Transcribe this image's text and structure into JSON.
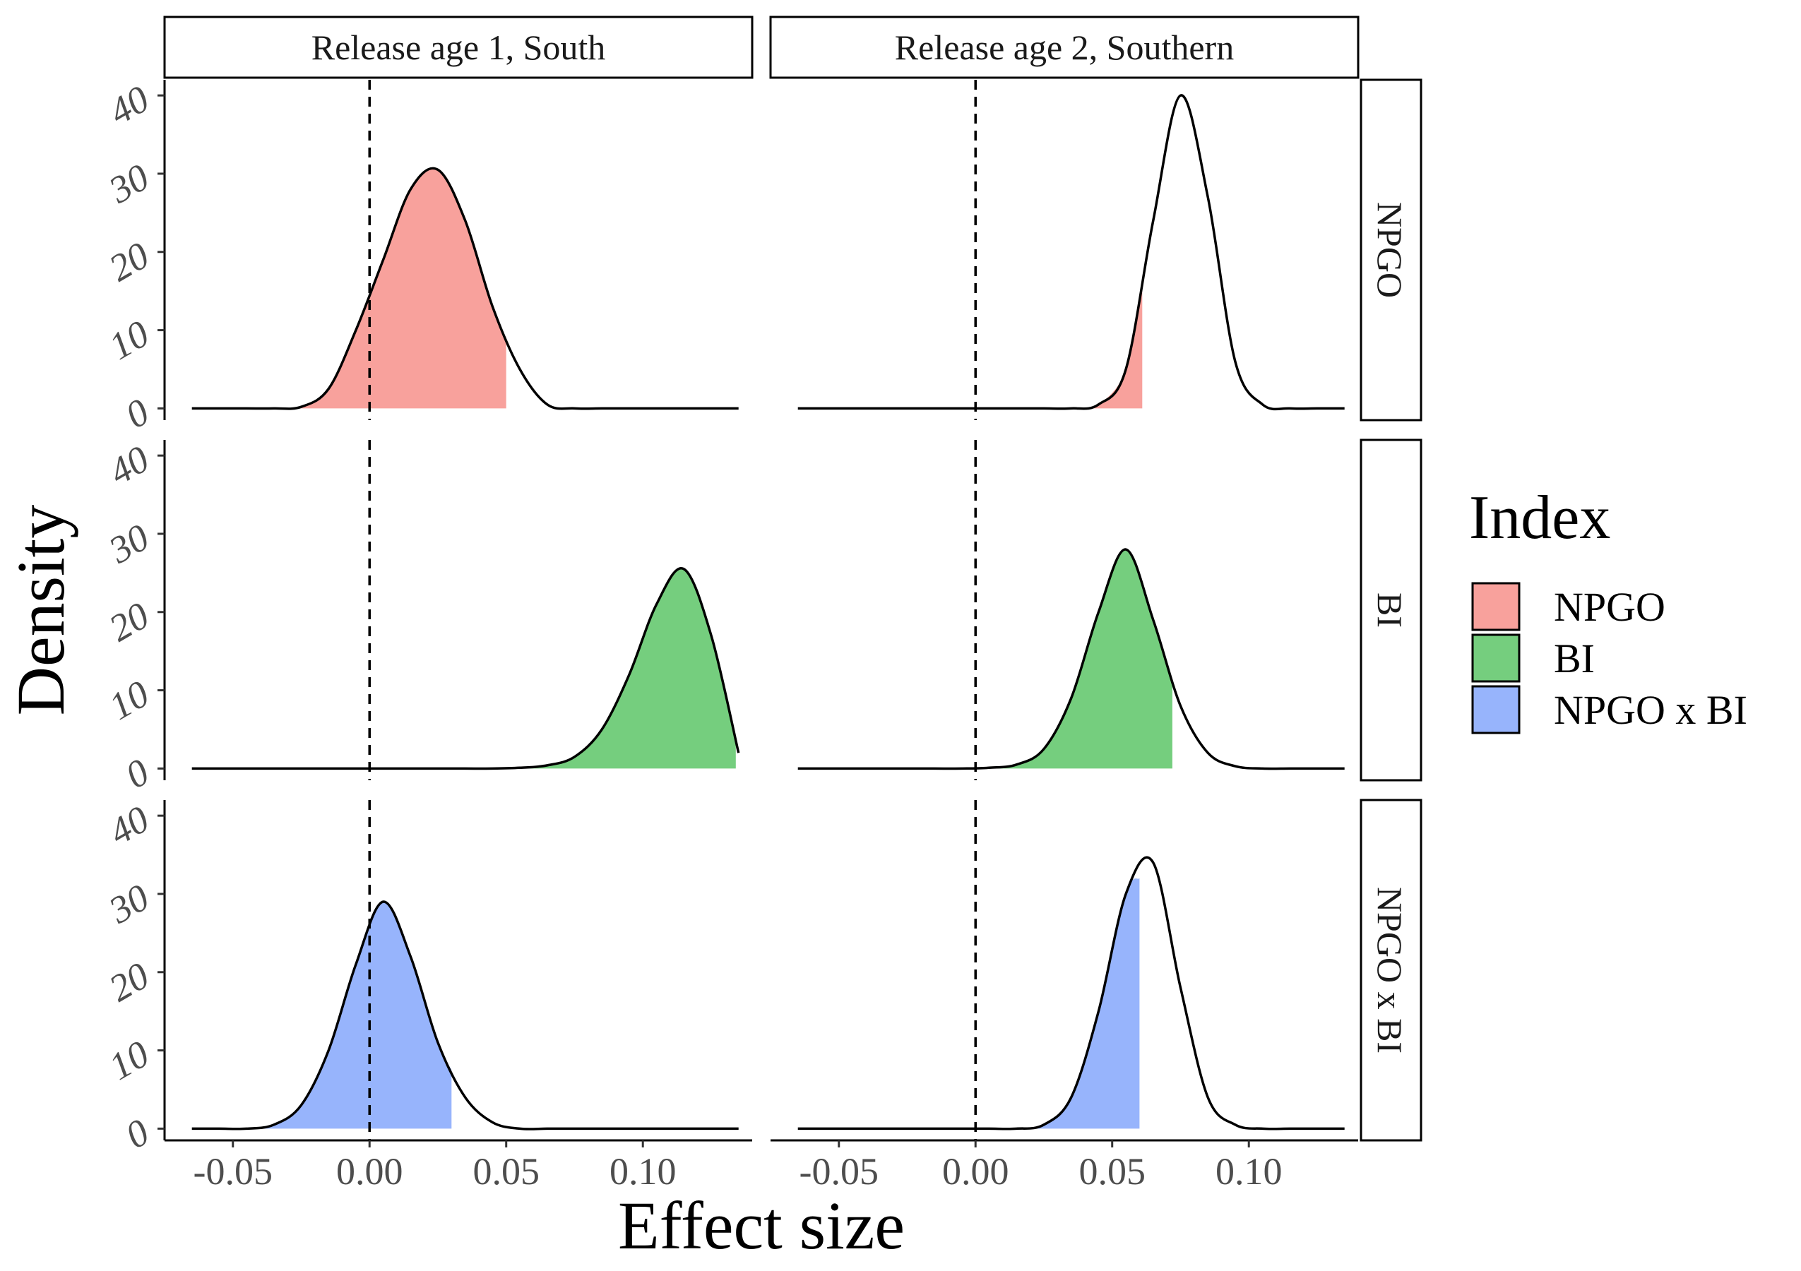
{
  "chart_data": {
    "type": "area",
    "subtype": "density",
    "xlabel": "Effect size",
    "ylabel": "Density",
    "xlim": [
      -0.075,
      0.14
    ],
    "ylim": [
      -1.5,
      42
    ],
    "x_ticks": [
      -0.05,
      0.0,
      0.05,
      0.1
    ],
    "x_tick_labels": [
      "-0.05",
      "0.00",
      "0.05",
      "0.10"
    ],
    "y_ticks": [
      0,
      10,
      20,
      30,
      40
    ],
    "y_tick_labels": [
      "0",
      "10",
      "20",
      "30",
      "40"
    ],
    "reference_line": {
      "x": 0,
      "style": "dashed"
    },
    "column_facets": [
      "Release age 1, South",
      "Release age 2, Southern"
    ],
    "row_facets": [
      "NPGO",
      "BI",
      "NPGO x BI"
    ],
    "legend": {
      "title": "Index",
      "position": "right",
      "entries": [
        {
          "label": "NPGO",
          "color": "#F8A19C"
        },
        {
          "label": "BI",
          "color": "#75CE7E"
        },
        {
          "label": "NPGO x BI",
          "color": "#97B4FC"
        }
      ]
    },
    "x_grid": [
      -0.065,
      -0.055,
      -0.045,
      -0.035,
      -0.025,
      -0.015,
      -0.005,
      0.005,
      0.015,
      0.025,
      0.035,
      0.045,
      0.055,
      0.065,
      0.075,
      0.085,
      0.095,
      0.105,
      0.115,
      0.125,
      0.135
    ],
    "panels": [
      {
        "row": "NPGO",
        "col": "Release age 1, South",
        "fill_range": [
          -0.026,
          0.05
        ],
        "y": [
          0,
          0,
          0,
          0,
          0.2,
          2.5,
          10,
          19,
          28,
          30.5,
          24,
          13,
          5,
          0.5,
          0,
          0,
          0,
          0,
          0,
          0,
          0
        ]
      },
      {
        "row": "NPGO",
        "col": "Release age 2, Southern",
        "fill_range": [
          0.01,
          0.061
        ],
        "y": [
          0,
          0,
          0,
          0,
          0,
          0,
          0,
          0,
          0,
          0,
          0,
          0.5,
          5,
          24,
          40,
          27,
          6,
          0.5,
          0,
          0,
          0
        ]
      },
      {
        "row": "BI",
        "col": "Release age 1, South",
        "fill_range": [
          0.04,
          0.134
        ],
        "y": [
          0,
          0,
          0,
          0,
          0,
          0,
          0,
          0,
          0,
          0,
          0,
          0,
          0.1,
          0.4,
          1.5,
          5,
          12,
          21,
          25.5,
          17,
          2
        ]
      },
      {
        "row": "BI",
        "col": "Release age 2, Southern",
        "fill_range": [
          -0.001,
          0.072
        ],
        "y": [
          0,
          0,
          0,
          0,
          0,
          0,
          0,
          0.1,
          0.5,
          2.5,
          9,
          20,
          28,
          19,
          8,
          2,
          0.3,
          0,
          0,
          0,
          0
        ]
      },
      {
        "row": "NPGO x BI",
        "col": "Release age 1, South",
        "fill_range": [
          -0.058,
          0.03
        ],
        "y": [
          0,
          0,
          0,
          0.5,
          3,
          10,
          21,
          29,
          22,
          11,
          4,
          0.8,
          0,
          0,
          0,
          0,
          0,
          0,
          0,
          0,
          0
        ]
      },
      {
        "row": "NPGO x BI",
        "col": "Release age 2, Southern",
        "fill_range": [
          -0.012,
          0.06
        ],
        "y": [
          0,
          0,
          0,
          0,
          0,
          0,
          0,
          0,
          0,
          0.5,
          4,
          15,
          30,
          34,
          18,
          4,
          0.5,
          0,
          0,
          0,
          0
        ]
      }
    ]
  }
}
